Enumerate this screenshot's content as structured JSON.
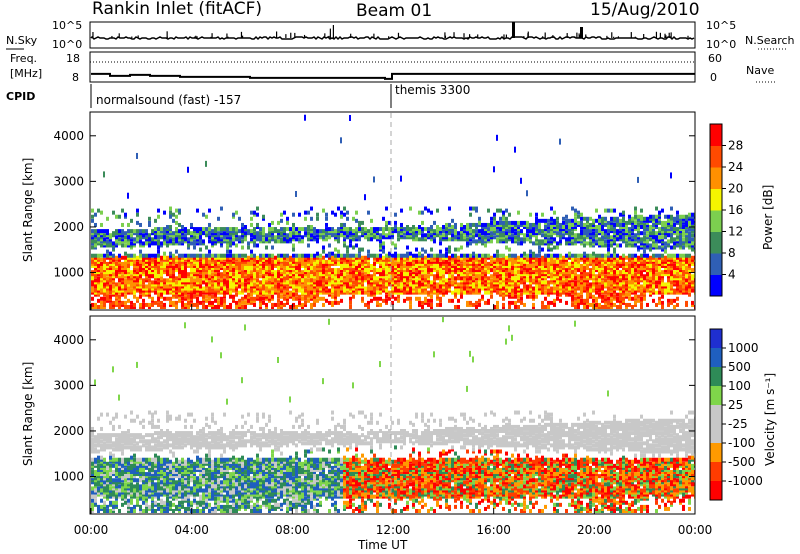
{
  "header": {
    "station": "Rankin Inlet (fitACF)",
    "beam": "Beam 01",
    "date": "15/Aug/2010"
  },
  "noise_panel": {
    "left_label": "N.Sky",
    "right_label": "N.Search",
    "left_ticks": [
      "10^5",
      "10^0"
    ],
    "right_ticks": [
      "10^5",
      "10^0"
    ]
  },
  "freq_panel": {
    "left_label_1": "Freq.",
    "left_label_2": "[MHz]",
    "right_label": "Nave",
    "left_ticks": [
      "18",
      "8"
    ],
    "right_ticks": [
      "60",
      "0"
    ],
    "freq_mhz": 11.2
  },
  "cpid_panel": {
    "label": "CPID",
    "segments": [
      {
        "text": "normalsound (fast) -157",
        "start_hour": 0
      },
      {
        "text": "themis 3300",
        "start_hour": 12
      }
    ]
  },
  "colors": {
    "power_scale": [
      "#0000ff",
      "#2f5fb5",
      "#3c8c5a",
      "#7ccf4f",
      "#f5f500",
      "#ff9000",
      "#ff4a00",
      "#ff0000"
    ],
    "velocity_scale": [
      "#ff0000",
      "#ff3c00",
      "#ff9a00",
      "#c8c8c8",
      "#c8c8c8",
      "#7fd64a",
      "#2e8b57",
      "#1f5fbf",
      "#1f2fd0"
    ],
    "cpid_change_line": "#aaaaaa"
  },
  "chart_data": [
    {
      "type": "heatmap",
      "title": "",
      "xlabel": "",
      "ylabel": "Slant Range [km]",
      "ylim": [
        200,
        4500
      ],
      "x_ticks": [
        "00:00",
        "04:00",
        "08:00",
        "12:00",
        "16:00",
        "20:00",
        "00:00"
      ],
      "y_ticks": [
        "1000",
        "2000",
        "3000",
        "4000"
      ],
      "colorbar": {
        "label": "Power [dB]",
        "ticks": [
          "4",
          "8",
          "12",
          "16",
          "20",
          "24",
          "28"
        ],
        "range": [
          0,
          32
        ]
      },
      "band_range_km": [
        {
          "hour": 0,
          "lower": 1500,
          "upper": 1900
        },
        {
          "hour": 12,
          "lower": 1700,
          "upper": 1950
        },
        {
          "hour": 22,
          "lower": 1500,
          "upper": 2200
        }
      ]
    },
    {
      "type": "heatmap",
      "title": "",
      "xlabel": "Time UT",
      "ylabel": "Slant Range [km]",
      "ylim": [
        200,
        4500
      ],
      "x_ticks": [
        "00:00",
        "04:00",
        "08:00",
        "12:00",
        "16:00",
        "20:00",
        "00:00"
      ],
      "y_ticks": [
        "1000",
        "2000",
        "3000",
        "4000"
      ],
      "colorbar": {
        "label": "Velocity [m s⁻¹]",
        "ticks": [
          "1000",
          "500",
          "100",
          "25",
          "-25",
          "-100",
          "-500",
          "-1000"
        ],
        "range": [
          -1000,
          1000
        ]
      }
    }
  ]
}
